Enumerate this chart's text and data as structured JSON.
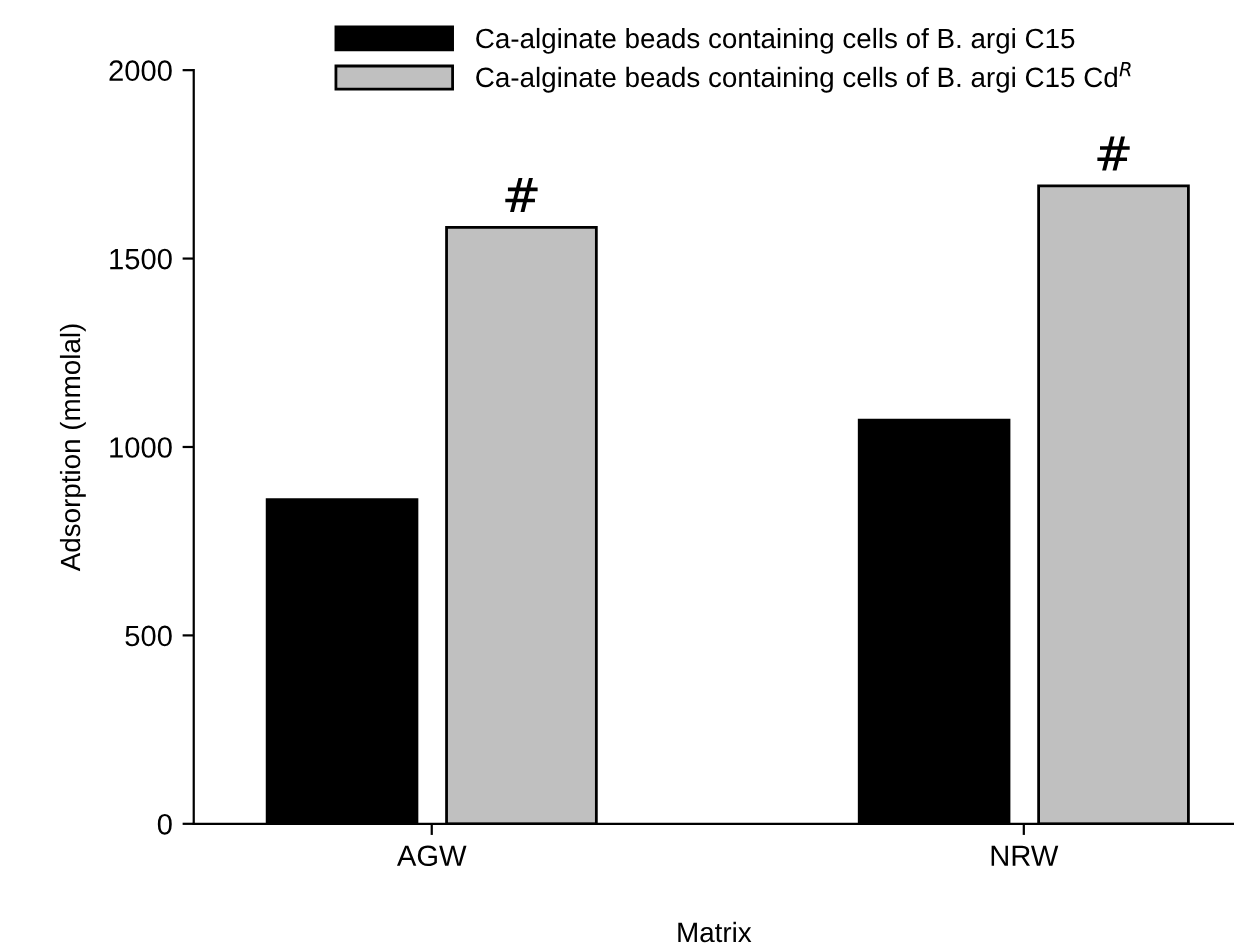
{
  "chart_data": {
    "type": "bar",
    "xlabel": "Matrix",
    "ylabel": "Adsorption (mmolal)",
    "categories": [
      "AGW",
      "NRW"
    ],
    "series": [
      {
        "name": "Ca-alginate beads containing cells of B. argi C15",
        "color": "#000000",
        "values": [
          860,
          1071
        ]
      },
      {
        "name": "Ca-alginate beads containing cells of B. argi C15 Cd$^{R}$",
        "color": "#c0c0c0",
        "values": [
          1583,
          1693
        ]
      }
    ],
    "ylim": [
      0,
      2000
    ],
    "yticks": [
      0,
      500,
      1000,
      1500,
      2000
    ],
    "annotations": [
      "#",
      "#"
    ],
    "grid": false,
    "legend": "top"
  }
}
